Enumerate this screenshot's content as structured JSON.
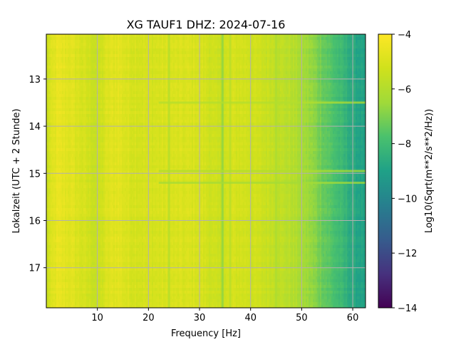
{
  "chart_data": {
    "type": "heatmap",
    "title": "XG TAUF1  DHZ: 2024-07-16",
    "xlabel": "Frequency [Hz]",
    "ylabel": "Lokalzeit (UTC + 2 Stunde)",
    "colorbar_label": "Log10(Sqrt(m**2/s**2/Hz))",
    "colormap": "viridis",
    "grid": true,
    "xlim": [
      0,
      62.5
    ],
    "ylim": [
      17.85,
      12.05
    ],
    "y_inverted": true,
    "clim": [
      -14,
      -4
    ],
    "x_ticks": [
      10,
      20,
      30,
      40,
      50,
      60
    ],
    "x_tick_labels": [
      "10",
      "20",
      "30",
      "40",
      "50",
      "60"
    ],
    "y_ticks": [
      13,
      14,
      15,
      16,
      17
    ],
    "y_tick_labels": [
      "13",
      "14",
      "15",
      "16",
      "17"
    ],
    "colorbar_ticks": [
      -14,
      -12,
      -10,
      -8,
      -6,
      -4
    ],
    "colorbar_tick_labels": [
      "−14",
      "−12",
      "−10",
      "−8",
      "−6",
      "−4"
    ],
    "frequency_profile": {
      "freq_hz": [
        0,
        2,
        5,
        8,
        10,
        12,
        14,
        16,
        20,
        25,
        30,
        34,
        36,
        40,
        44,
        48,
        50,
        52,
        54,
        56,
        58,
        60,
        62.5
      ],
      "log10_amplitude": [
        -5.4,
        -4.6,
        -4.8,
        -5.2,
        -5.5,
        -4.9,
        -4.7,
        -5.0,
        -5.1,
        -5.0,
        -5.0,
        -5.5,
        -5.1,
        -5.2,
        -5.5,
        -5.9,
        -6.3,
        -6.7,
        -7.2,
        -7.7,
        -8.2,
        -8.7,
        -9.0
      ]
    },
    "notable_features": [
      {
        "kind": "vertical_line",
        "freq_hz": 34.5,
        "log10_amplitude": -6.8
      },
      {
        "kind": "vertical_line",
        "freq_hz": 36,
        "log10_amplitude": -5.9
      },
      {
        "kind": "vertical_line",
        "freq_hz": 24,
        "log10_amplitude": -6.0
      },
      {
        "kind": "vertical_line",
        "freq_hz": 45,
        "log10_amplitude": -6.2
      },
      {
        "kind": "horizontal_band",
        "local_time": 15.2,
        "log10_amplitude": -6.4
      },
      {
        "kind": "horizontal_band",
        "local_time": 13.5,
        "log10_amplitude": -6.0
      },
      {
        "kind": "horizontal_band",
        "local_time": 14.95,
        "log10_amplitude": -6.1
      }
    ]
  }
}
